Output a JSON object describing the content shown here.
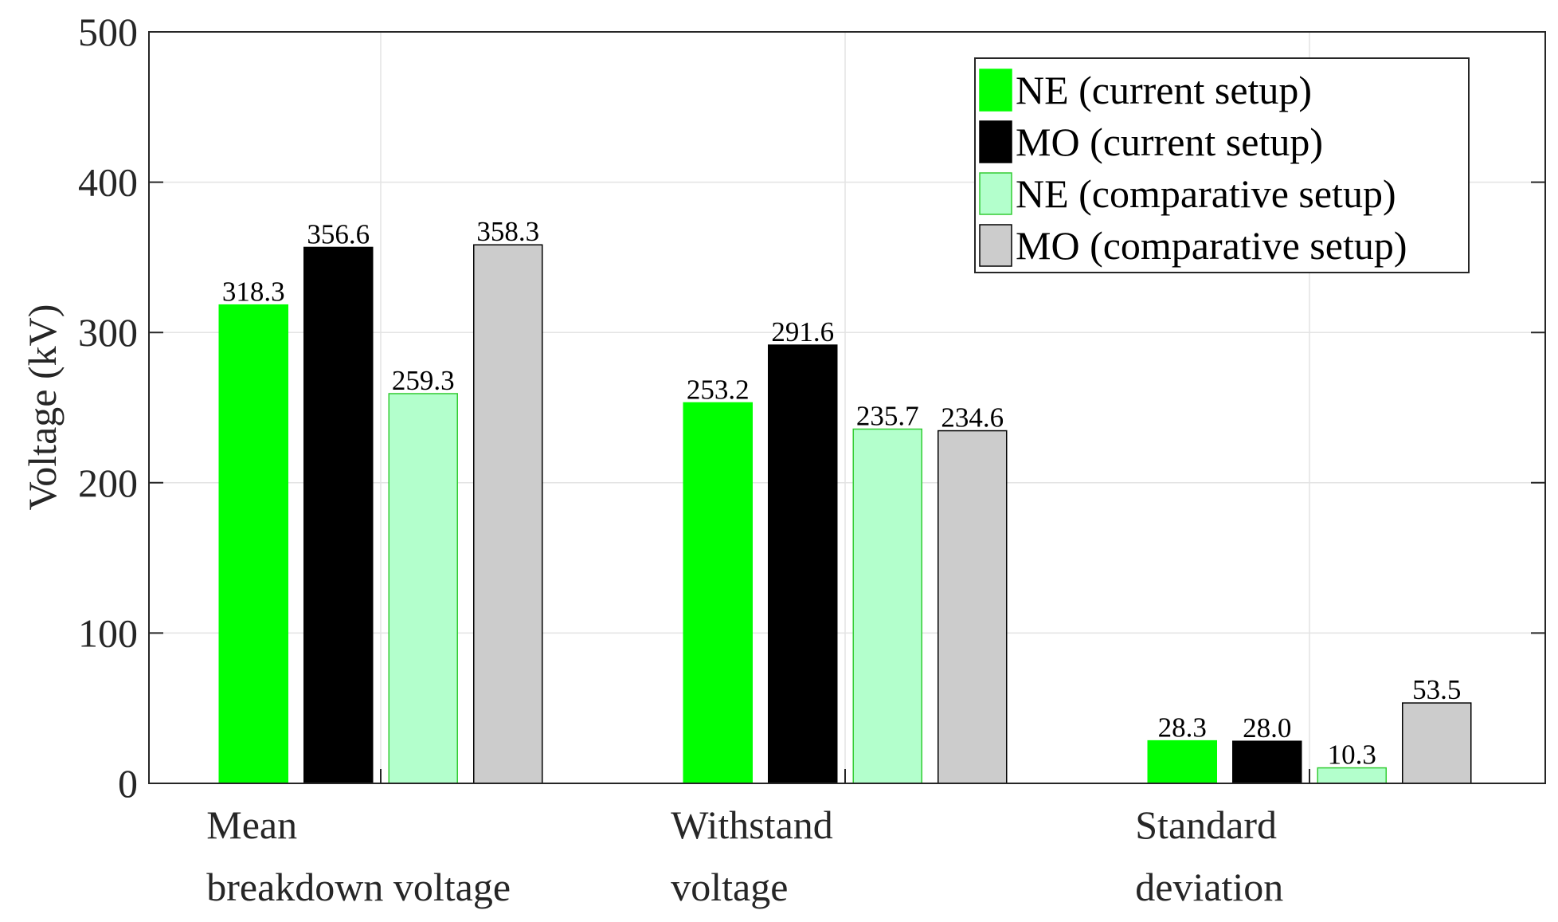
{
  "chart_data": {
    "type": "bar",
    "title": "",
    "xlabel": "",
    "ylabel": "Voltage (kV)",
    "ylim": [
      0,
      500
    ],
    "yticks": [
      0,
      100,
      200,
      300,
      400,
      500
    ],
    "grid": true,
    "legend_position": "top-right",
    "categories": [
      [
        "Mean",
        "breakdown voltage"
      ],
      [
        "Withstand",
        "voltage"
      ],
      [
        "Standard",
        "deviation"
      ]
    ],
    "series": [
      {
        "name": "NE (current setup)",
        "color": "#00ff00",
        "edge": "#00ff00",
        "values": [
          318.3,
          253.2,
          28.3
        ],
        "labels": [
          "318.3",
          "253.2",
          "28.3"
        ]
      },
      {
        "name": "MO (current setup)",
        "color": "#000000",
        "edge": "#000000",
        "values": [
          356.6,
          291.6,
          28.0
        ],
        "labels": [
          "356.6",
          "291.6",
          "28.0"
        ]
      },
      {
        "name": "NE (comparative setup)",
        "color": "#b3ffcc",
        "edge": "#33cc33",
        "values": [
          259.3,
          235.7,
          10.3
        ],
        "labels": [
          "259.3",
          "235.7",
          "10.3"
        ]
      },
      {
        "name": "MO (comparative setup)",
        "color": "#cccccc",
        "edge": "#000000",
        "values": [
          358.3,
          234.6,
          53.5
        ],
        "labels": [
          "358.3",
          "234.6",
          "53.5"
        ]
      }
    ]
  }
}
